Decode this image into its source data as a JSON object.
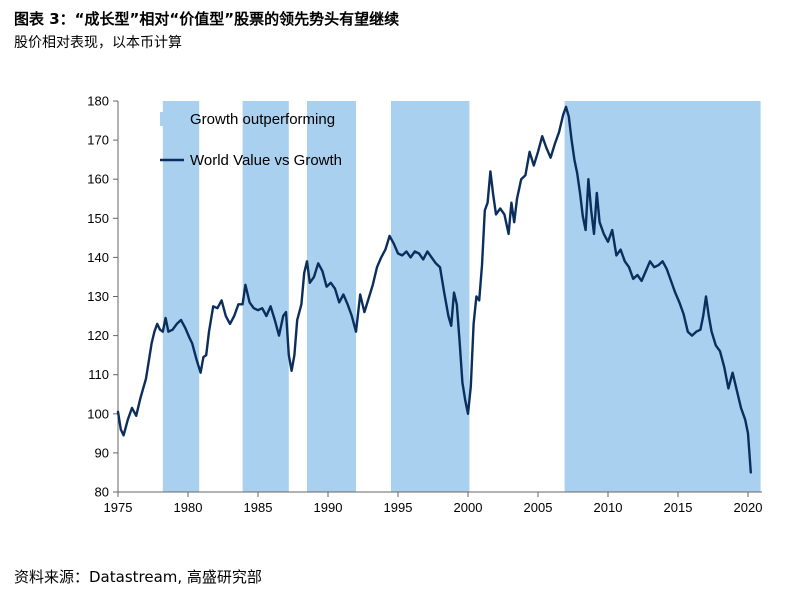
{
  "header": {
    "title": "图表 3：“成长型”相对“价值型”股票的领先势头有望继续",
    "subtitle": "股价相对表现，以本币计算"
  },
  "footer": {
    "source": "资料来源：Datastream, 高盛研究部"
  },
  "chart_data": {
    "type": "line",
    "title": "",
    "xlabel": "",
    "ylabel": "",
    "xlim": [
      1975,
      2021
    ],
    "ylim": [
      80,
      180
    ],
    "x_ticks": [
      1975,
      1980,
      1985,
      1990,
      1995,
      2000,
      2005,
      2010,
      2015,
      2020
    ],
    "y_ticks": [
      80,
      90,
      100,
      110,
      120,
      130,
      140,
      150,
      160,
      170,
      180
    ],
    "grid": false,
    "legend_position": "top-left",
    "colors": {
      "line": "#0b2e5c",
      "shade": "#a9d0ee",
      "axis": "#666666"
    },
    "shaded_series_name": "Growth outperforming",
    "shaded_periods": [
      [
        1978.2,
        1980.8
      ],
      [
        1983.9,
        1987.2
      ],
      [
        1988.5,
        1992.0
      ],
      [
        1994.5,
        2000.1
      ],
      [
        2006.9,
        2020.9
      ]
    ],
    "series": [
      {
        "name": "World Value vs Growth",
        "points": [
          [
            1975.0,
            100.5
          ],
          [
            1975.2,
            96.0
          ],
          [
            1975.4,
            94.5
          ],
          [
            1975.7,
            98.5
          ],
          [
            1976.0,
            101.5
          ],
          [
            1976.3,
            99.5
          ],
          [
            1976.6,
            104.0
          ],
          [
            1977.0,
            109.0
          ],
          [
            1977.4,
            118.0
          ],
          [
            1977.6,
            121.0
          ],
          [
            1977.8,
            123.0
          ],
          [
            1978.0,
            121.5
          ],
          [
            1978.2,
            121.0
          ],
          [
            1978.4,
            124.5
          ],
          [
            1978.6,
            121.0
          ],
          [
            1978.9,
            121.5
          ],
          [
            1979.2,
            123.0
          ],
          [
            1979.5,
            124.0
          ],
          [
            1979.8,
            122.0
          ],
          [
            1980.1,
            119.5
          ],
          [
            1980.3,
            118.0
          ],
          [
            1980.6,
            114.0
          ],
          [
            1980.9,
            110.5
          ],
          [
            1981.1,
            114.5
          ],
          [
            1981.3,
            115.0
          ],
          [
            1981.5,
            121.0
          ],
          [
            1981.8,
            127.5
          ],
          [
            1982.1,
            127.0
          ],
          [
            1982.4,
            129.0
          ],
          [
            1982.7,
            125.0
          ],
          [
            1983.0,
            123.0
          ],
          [
            1983.3,
            125.0
          ],
          [
            1983.6,
            128.0
          ],
          [
            1983.9,
            128.0
          ],
          [
            1984.1,
            133.0
          ],
          [
            1984.4,
            128.5
          ],
          [
            1984.7,
            127.0
          ],
          [
            1985.0,
            126.5
          ],
          [
            1985.3,
            127.0
          ],
          [
            1985.6,
            125.0
          ],
          [
            1985.9,
            127.5
          ],
          [
            1986.2,
            124.0
          ],
          [
            1986.5,
            120.0
          ],
          [
            1986.8,
            125.0
          ],
          [
            1987.0,
            126.0
          ],
          [
            1987.2,
            115.0
          ],
          [
            1987.4,
            111.0
          ],
          [
            1987.6,
            115.0
          ],
          [
            1987.8,
            124.0
          ],
          [
            1988.1,
            128.0
          ],
          [
            1988.3,
            136.0
          ],
          [
            1988.5,
            139.0
          ],
          [
            1988.7,
            133.5
          ],
          [
            1989.0,
            135.0
          ],
          [
            1989.3,
            138.5
          ],
          [
            1989.6,
            136.5
          ],
          [
            1989.9,
            132.5
          ],
          [
            1990.2,
            133.5
          ],
          [
            1990.5,
            132.0
          ],
          [
            1990.8,
            128.5
          ],
          [
            1991.1,
            130.5
          ],
          [
            1991.4,
            128.0
          ],
          [
            1991.7,
            125.0
          ],
          [
            1992.0,
            121.0
          ],
          [
            1992.3,
            130.5
          ],
          [
            1992.6,
            126.0
          ],
          [
            1992.9,
            129.5
          ],
          [
            1993.2,
            133.0
          ],
          [
            1993.5,
            137.5
          ],
          [
            1993.8,
            140.0
          ],
          [
            1994.1,
            142.0
          ],
          [
            1994.4,
            145.5
          ],
          [
            1994.7,
            143.5
          ],
          [
            1995.0,
            141.0
          ],
          [
            1995.3,
            140.5
          ],
          [
            1995.6,
            141.5
          ],
          [
            1995.9,
            140.0
          ],
          [
            1996.2,
            141.5
          ],
          [
            1996.5,
            141.0
          ],
          [
            1996.8,
            139.5
          ],
          [
            1997.1,
            141.5
          ],
          [
            1997.4,
            140.0
          ],
          [
            1997.7,
            138.5
          ],
          [
            1998.0,
            137.5
          ],
          [
            1998.3,
            131.0
          ],
          [
            1998.6,
            125.0
          ],
          [
            1998.8,
            122.5
          ],
          [
            1999.0,
            131.0
          ],
          [
            1999.2,
            128.0
          ],
          [
            1999.4,
            118.5
          ],
          [
            1999.6,
            108.0
          ],
          [
            1999.8,
            103.5
          ],
          [
            2000.0,
            100.0
          ],
          [
            2000.2,
            107.0
          ],
          [
            2000.4,
            123.0
          ],
          [
            2000.6,
            130.0
          ],
          [
            2000.8,
            129.0
          ],
          [
            2001.0,
            138.0
          ],
          [
            2001.2,
            152.0
          ],
          [
            2001.4,
            154.0
          ],
          [
            2001.6,
            162.0
          ],
          [
            2001.8,
            156.0
          ],
          [
            2002.0,
            151.0
          ],
          [
            2002.3,
            152.5
          ],
          [
            2002.6,
            151.0
          ],
          [
            2002.9,
            146.0
          ],
          [
            2003.1,
            154.0
          ],
          [
            2003.3,
            149.0
          ],
          [
            2003.5,
            155.0
          ],
          [
            2003.8,
            160.0
          ],
          [
            2004.1,
            161.0
          ],
          [
            2004.4,
            167.0
          ],
          [
            2004.7,
            163.5
          ],
          [
            2005.0,
            167.0
          ],
          [
            2005.3,
            171.0
          ],
          [
            2005.6,
            168.0
          ],
          [
            2005.9,
            165.5
          ],
          [
            2006.2,
            169.0
          ],
          [
            2006.5,
            172.0
          ],
          [
            2006.8,
            176.5
          ],
          [
            2007.0,
            178.5
          ],
          [
            2007.2,
            176.0
          ],
          [
            2007.4,
            170.0
          ],
          [
            2007.6,
            165.0
          ],
          [
            2007.8,
            161.5
          ],
          [
            2008.0,
            156.5
          ],
          [
            2008.2,
            150.5
          ],
          [
            2008.4,
            147.0
          ],
          [
            2008.6,
            160.0
          ],
          [
            2008.8,
            152.0
          ],
          [
            2009.0,
            146.0
          ],
          [
            2009.2,
            156.5
          ],
          [
            2009.4,
            149.0
          ],
          [
            2009.7,
            146.0
          ],
          [
            2010.0,
            144.0
          ],
          [
            2010.3,
            147.0
          ],
          [
            2010.6,
            140.5
          ],
          [
            2010.9,
            142.0
          ],
          [
            2011.2,
            139.0
          ],
          [
            2011.5,
            137.5
          ],
          [
            2011.8,
            134.5
          ],
          [
            2012.1,
            135.5
          ],
          [
            2012.4,
            134.0
          ],
          [
            2012.7,
            136.5
          ],
          [
            2013.0,
            139.0
          ],
          [
            2013.3,
            137.5
          ],
          [
            2013.6,
            138.0
          ],
          [
            2013.9,
            139.0
          ],
          [
            2014.2,
            137.0
          ],
          [
            2014.5,
            134.0
          ],
          [
            2014.8,
            131.0
          ],
          [
            2015.1,
            128.5
          ],
          [
            2015.4,
            125.5
          ],
          [
            2015.7,
            121.0
          ],
          [
            2016.0,
            120.0
          ],
          [
            2016.3,
            121.0
          ],
          [
            2016.6,
            121.5
          ],
          [
            2016.8,
            125.0
          ],
          [
            2017.0,
            130.0
          ],
          [
            2017.2,
            125.0
          ],
          [
            2017.4,
            121.0
          ],
          [
            2017.7,
            117.5
          ],
          [
            2018.0,
            116.0
          ],
          [
            2018.3,
            112.0
          ],
          [
            2018.6,
            106.5
          ],
          [
            2018.9,
            110.5
          ],
          [
            2019.2,
            106.0
          ],
          [
            2019.5,
            101.5
          ],
          [
            2019.8,
            98.5
          ],
          [
            2020.0,
            95.0
          ],
          [
            2020.2,
            85.0
          ]
        ]
      }
    ]
  }
}
